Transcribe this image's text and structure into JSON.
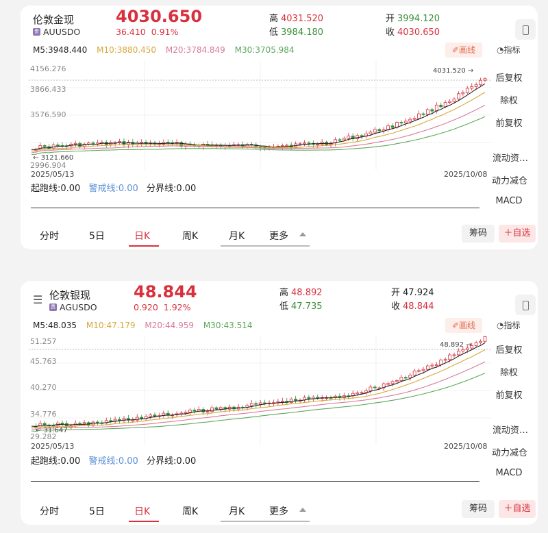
{
  "panels": [
    {
      "name": "伦敦金现",
      "symbol": "AUUSDO",
      "symbol_badge": "贵",
      "price": "4030.650",
      "change": "36.410",
      "change_pct": "0.91%",
      "high_label": "高",
      "high": "4031.520",
      "low_label": "低",
      "low": "3984.180",
      "open_label": "开",
      "open": "3994.120",
      "close_label": "收",
      "close": "4030.650",
      "ma": {
        "m5": "M5:3948.440",
        "m10": "M10:3880.450",
        "m20": "M20:3784.849",
        "m30": "M30:3705.984"
      },
      "y_labels": [
        "4156.276",
        "3866.433",
        "3576.590",
        "2996.904"
      ],
      "max_marker": "4031.520",
      "min_marker": "3121.660",
      "date_start": "2025/05/13",
      "date_end": "2025/10/08",
      "ind_a": "起跑线:0.00",
      "ind_b": "警戒线:0.00",
      "ind_c": "分界线:0.00"
    },
    {
      "name": "伦敦银现",
      "symbol": "AGUSDO",
      "symbol_badge": "贵",
      "price": "48.844",
      "change": "0.920",
      "change_pct": "1.92%",
      "high_label": "高",
      "high": "48.892",
      "low_label": "低",
      "low": "47.735",
      "open_label": "开",
      "open": "47.924",
      "close_label": "收",
      "close": "48.844",
      "ma": {
        "m5": "M5:48.035",
        "m10": "M10:47.179",
        "m20": "M20:44.959",
        "m30": "M30:43.514"
      },
      "y_labels": [
        "51.257",
        "45.763",
        "40.270",
        "34.776",
        "29.282"
      ],
      "max_marker": "48.892",
      "min_marker": "31.647",
      "date_start": "2025/05/13",
      "date_end": "2025/10/08",
      "ind_a": "起跑线:0.00",
      "ind_b": "警戒线:0.00",
      "ind_c": "分界线:0.00"
    }
  ],
  "toolbar": {
    "draw": "画线",
    "indicators": "指标",
    "side": [
      "后复权",
      "除权",
      "前复权",
      "流动资…",
      "动力减仓",
      "MACD"
    ]
  },
  "tabs": [
    "分时",
    "5日",
    "日K",
    "周K",
    "月K",
    "更多"
  ],
  "active_tab": "日K",
  "chip_chips": "筹码",
  "chip_add": "＋自选",
  "colors": {
    "up": "#d8303d",
    "down": "#3b8f3b",
    "m5": "#222222",
    "m10": "#d8a83a",
    "m20": "#d97a9a",
    "m30": "#5aa85a"
  }
}
